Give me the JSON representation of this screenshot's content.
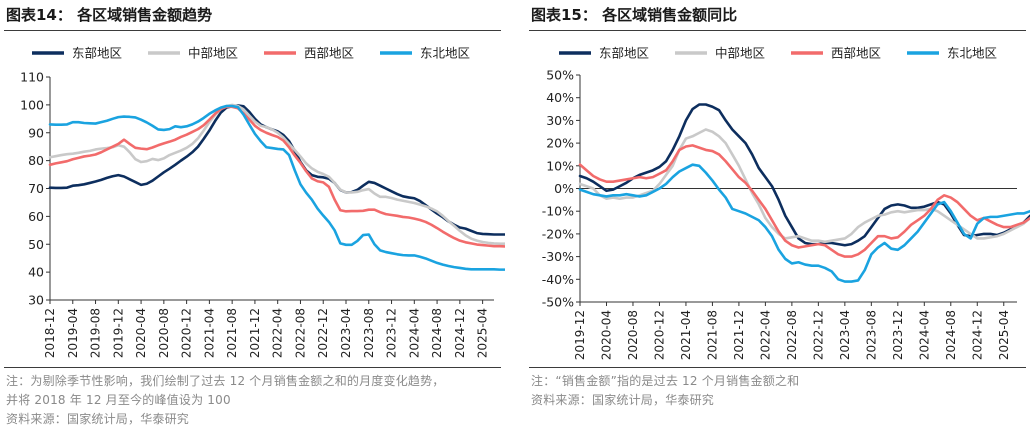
{
  "charts": [
    {
      "id": "left",
      "title": "图表14：  各区域销售金额趋势",
      "notes": [
        "注：为剔除季节性影响，我们绘制了过去 12 个月销售金额之和的月度变化趋势，",
        "并将 2018 年 12 月至今的峰值设为 100",
        "资料来源：国家统计局，华泰研究"
      ]
    },
    {
      "id": "right",
      "title": "图表15：  各区域销售金额同比",
      "notes": [
        "注：“销售金额”指的是过去 12 个月销售金额之和",
        "资料来源：国家统计局，华泰研究"
      ]
    }
  ],
  "chart_data": [
    {
      "type": "line",
      "title": "各区域销售金额趋势",
      "xlabel": "",
      "ylabel": "",
      "ylim": [
        30,
        110
      ],
      "yticks": [
        30,
        40,
        50,
        60,
        70,
        80,
        90,
        100,
        110
      ],
      "x_start": "2018-12",
      "x_end": "2025-06",
      "x_ticklabels": [
        "2018-12",
        "2019-04",
        "2019-08",
        "2019-12",
        "2020-04",
        "2020-08",
        "2020-12",
        "2021-04",
        "2021-08",
        "2021-12",
        "2022-04",
        "2022-08",
        "2022-12",
        "2023-04",
        "2023-08",
        "2023-12",
        "2024-04",
        "2024-08",
        "2024-12",
        "2025-04"
      ],
      "legend_position": "top",
      "grid": false,
      "series": [
        {
          "name": "东部地区",
          "color": "#0d2e5e",
          "width": 2.6,
          "values": [
            70.3,
            70.2,
            70.2,
            70.3,
            71.0,
            71.2,
            71.5,
            72.0,
            72.5,
            73.1,
            73.8,
            74.4,
            74.8,
            74.3,
            73.3,
            72.3,
            71.3,
            71.7,
            72.8,
            74.3,
            75.8,
            77.1,
            78.5,
            80.0,
            81.4,
            83.0,
            85.0,
            87.8,
            90.8,
            94.2,
            97.2,
            99.0,
            99.5,
            99.8,
            99.5,
            97.5,
            95.0,
            93.0,
            92.0,
            91.2,
            90.5,
            89.2,
            87.0,
            83.5,
            79.5,
            76.5,
            74.8,
            74.2,
            74.0,
            73.5,
            72.0,
            69.5,
            68.6,
            68.7,
            69.5,
            71.0,
            72.4,
            72.0,
            71.0,
            70.0,
            69.0,
            68.0,
            67.2,
            66.8,
            66.5,
            65.5,
            64.0,
            62.5,
            61.0,
            59.7,
            58.2,
            57.0,
            56.0,
            55.6,
            54.8,
            54.0,
            53.7,
            53.6,
            53.5,
            53.5,
            53.5,
            53.4,
            53.3,
            53.3,
            53.2,
            53.0,
            52.8,
            52.5
          ]
        },
        {
          "name": "中部地区",
          "color": "#c9c9c9",
          "width": 2.6,
          "values": [
            81.2,
            81.6,
            82.0,
            82.3,
            82.5,
            82.8,
            83.2,
            83.5,
            84.0,
            84.3,
            84.5,
            84.8,
            85.5,
            85.0,
            83.0,
            80.5,
            79.5,
            79.8,
            80.6,
            80.2,
            80.8,
            82.0,
            82.8,
            83.6,
            84.6,
            86.0,
            88.0,
            90.8,
            93.8,
            96.4,
            98.5,
            99.6,
            100.0,
            99.6,
            98.4,
            96.2,
            94.0,
            92.5,
            92.0,
            91.2,
            90.0,
            88.3,
            86.0,
            83.8,
            81.5,
            79.0,
            77.2,
            76.0,
            75.2,
            74.2,
            72.0,
            69.6,
            68.6,
            68.6,
            68.8,
            69.4,
            69.8,
            68.2,
            67.0,
            67.0,
            66.6,
            66.0,
            65.6,
            65.2,
            64.8,
            64.2,
            63.6,
            62.8,
            61.8,
            60.2,
            58.3,
            56.6,
            54.8,
            53.2,
            52.0,
            51.3,
            50.8,
            50.5,
            50.3,
            50.2,
            50.2,
            50.1,
            50.0,
            50.0,
            49.9,
            49.8,
            49.6,
            49.5
          ]
        },
        {
          "name": "西部地区",
          "color": "#f26b6b",
          "width": 2.6,
          "values": [
            78.5,
            79.0,
            79.4,
            79.8,
            80.5,
            81.0,
            81.5,
            81.8,
            82.2,
            83.0,
            84.0,
            85.0,
            86.0,
            87.5,
            86.0,
            84.6,
            84.3,
            84.1,
            84.7,
            85.5,
            86.2,
            86.8,
            87.5,
            88.5,
            89.3,
            90.3,
            91.3,
            92.7,
            94.7,
            96.8,
            98.5,
            99.3,
            99.3,
            98.8,
            97.0,
            94.8,
            92.5,
            91.0,
            90.0,
            89.2,
            88.5,
            87.2,
            84.8,
            81.8,
            79.2,
            76.2,
            73.6,
            72.6,
            72.2,
            70.6,
            66.0,
            62.2,
            61.8,
            61.9,
            61.9,
            62.0,
            62.4,
            62.4,
            61.5,
            60.8,
            60.5,
            60.2,
            59.8,
            59.6,
            59.2,
            58.7,
            58.0,
            57.0,
            55.8,
            54.5,
            53.3,
            52.2,
            51.3,
            50.7,
            50.3,
            49.9,
            49.7,
            49.5,
            49.3,
            49.3,
            49.2,
            49.1,
            49.0,
            48.9,
            48.8,
            48.7,
            48.6,
            48.5
          ]
        },
        {
          "name": "东北地区",
          "color": "#1aa3e0",
          "width": 2.6,
          "values": [
            93.0,
            92.9,
            92.9,
            93.0,
            93.8,
            93.8,
            93.5,
            93.4,
            93.3,
            93.8,
            94.3,
            95.0,
            95.6,
            95.8,
            95.7,
            95.5,
            94.7,
            93.7,
            92.5,
            91.2,
            91.0,
            91.3,
            92.3,
            92.0,
            92.3,
            93.0,
            94.0,
            95.3,
            96.8,
            98.0,
            99.0,
            99.6,
            99.6,
            99.2,
            96.5,
            93.0,
            89.6,
            87.0,
            84.8,
            84.5,
            84.2,
            84.0,
            82.0,
            76.5,
            71.5,
            68.5,
            66.0,
            62.8,
            60.3,
            58.0,
            55.0,
            50.3,
            49.8,
            49.8,
            51.2,
            53.3,
            53.5,
            50.0,
            47.8,
            47.2,
            46.8,
            46.4,
            46.1,
            46.0,
            46.0,
            45.5,
            44.9,
            44.1,
            43.3,
            42.7,
            42.2,
            41.8,
            41.5,
            41.2,
            41.0,
            41.0,
            41.0,
            41.0,
            41.0,
            40.9,
            40.9,
            40.9,
            40.9,
            40.8,
            40.8,
            40.8,
            39.8,
            39.8
          ]
        }
      ]
    },
    {
      "type": "line",
      "title": "各区域销售金额同比",
      "xlabel": "",
      "ylabel": "",
      "ylim": [
        -50,
        50
      ],
      "yticks": [
        -50,
        -40,
        -30,
        -20,
        -10,
        0,
        10,
        20,
        30,
        40,
        50
      ],
      "y_format": "percent",
      "x_start": "2019-12",
      "x_end": "2025-06",
      "x_ticklabels": [
        "2019-12",
        "2020-04",
        "2020-08",
        "2020-12",
        "2021-04",
        "2021-08",
        "2021-12",
        "2022-04",
        "2022-08",
        "2022-12",
        "2023-04",
        "2023-08",
        "2023-12",
        "2024-04",
        "2024-08",
        "2024-12",
        "2025-04"
      ],
      "legend_position": "top",
      "grid": false,
      "series": [
        {
          "name": "东部地区",
          "color": "#0d2e5e",
          "width": 2.6,
          "values": [
            5.5,
            4.5,
            3.0,
            1.0,
            -1.0,
            -0.5,
            1.0,
            2.5,
            4.5,
            6.0,
            7.0,
            8.0,
            9.5,
            12.0,
            17.0,
            23.0,
            30.0,
            35.0,
            37.0,
            37.0,
            36.0,
            34.5,
            30.0,
            26.0,
            23.0,
            20.0,
            15.0,
            9.0,
            5.0,
            1.0,
            -5.0,
            -12.0,
            -17.0,
            -22.0,
            -24.0,
            -24.5,
            -24.5,
            -24.0,
            -24.0,
            -24.5,
            -25.0,
            -24.5,
            -23.0,
            -21.0,
            -17.0,
            -13.0,
            -9.0,
            -7.5,
            -7.0,
            -7.5,
            -8.5,
            -8.5,
            -8.0,
            -7.0,
            -6.0,
            -7.0,
            -11.0,
            -16.0,
            -20.5,
            -21.0,
            -20.5,
            -20.0,
            -20.0,
            -20.5,
            -19.5,
            -18.0,
            -16.5,
            -15.0,
            -12.0,
            -10.5,
            -9.0,
            -7.5
          ]
        },
        {
          "name": "中部地区",
          "color": "#c9c9c9",
          "width": 2.6,
          "values": [
            2.0,
            1.0,
            0.0,
            -3.0,
            -4.5,
            -4.0,
            -4.5,
            -4.0,
            -4.0,
            -3.0,
            -2.0,
            -1.0,
            2.0,
            6.0,
            10.0,
            17.0,
            22.0,
            23.0,
            24.5,
            26.0,
            25.0,
            23.0,
            20.0,
            15.0,
            10.0,
            4.0,
            -2.0,
            -7.0,
            -13.0,
            -17.0,
            -20.0,
            -22.0,
            -21.5,
            -21.0,
            -22.0,
            -23.0,
            -23.0,
            -23.5,
            -23.0,
            -22.5,
            -22.0,
            -20.0,
            -17.0,
            -15.0,
            -13.5,
            -12.0,
            -11.5,
            -10.5,
            -10.0,
            -10.5,
            -10.0,
            -9.5,
            -9.5,
            -9.0,
            -10.0,
            -12.0,
            -14.0,
            -16.0,
            -18.0,
            -20.0,
            -22.0,
            -22.0,
            -21.5,
            -21.0,
            -20.0,
            -18.5,
            -17.0,
            -15.5,
            -13.0,
            -11.0,
            -9.5,
            -8.0
          ]
        },
        {
          "name": "西部地区",
          "color": "#f26b6b",
          "width": 2.6,
          "values": [
            10.5,
            8.0,
            5.5,
            4.0,
            3.0,
            3.0,
            3.5,
            4.0,
            4.5,
            5.0,
            4.5,
            5.0,
            6.5,
            8.0,
            12.0,
            17.0,
            18.5,
            19.0,
            18.0,
            17.0,
            16.5,
            15.0,
            12.0,
            8.5,
            5.0,
            2.5,
            -1.0,
            -5.0,
            -9.0,
            -14.0,
            -19.0,
            -23.0,
            -25.0,
            -26.0,
            -25.5,
            -25.0,
            -24.5,
            -25.0,
            -27.0,
            -29.0,
            -30.0,
            -30.0,
            -29.0,
            -27.0,
            -24.0,
            -21.0,
            -21.0,
            -22.0,
            -21.5,
            -19.0,
            -16.0,
            -14.0,
            -12.0,
            -9.0,
            -5.0,
            -3.0,
            -4.0,
            -6.0,
            -9.0,
            -12.0,
            -14.0,
            -13.0,
            -14.5,
            -16.0,
            -17.0,
            -17.0,
            -16.0,
            -15.0,
            -13.0,
            -11.0,
            -9.0,
            -7.5
          ]
        },
        {
          "name": "东北地区",
          "color": "#1aa3e0",
          "width": 2.6,
          "values": [
            -0.5,
            -1.5,
            -2.5,
            -3.0,
            -3.5,
            -3.0,
            -3.0,
            -2.5,
            -3.0,
            -3.5,
            -3.0,
            -1.5,
            0.0,
            2.0,
            5.0,
            7.5,
            9.0,
            10.5,
            10.0,
            7.0,
            3.5,
            -0.5,
            -4.0,
            -9.0,
            -10.0,
            -11.0,
            -12.5,
            -14.0,
            -17.0,
            -21.0,
            -27.0,
            -31.0,
            -33.0,
            -32.5,
            -33.5,
            -34.0,
            -34.0,
            -35.0,
            -36.5,
            -40.0,
            -41.0,
            -41.0,
            -40.5,
            -36.0,
            -29.0,
            -26.0,
            -24.0,
            -26.5,
            -27.0,
            -25.0,
            -22.0,
            -19.0,
            -15.0,
            -11.0,
            -7.0,
            -6.0,
            -10.0,
            -15.0,
            -20.0,
            -22.0,
            -15.5,
            -13.0,
            -12.5,
            -12.5,
            -12.0,
            -11.5,
            -11.0,
            -11.0,
            -10.0,
            -8.0,
            -6.0,
            -5.0
          ]
        }
      ]
    }
  ]
}
